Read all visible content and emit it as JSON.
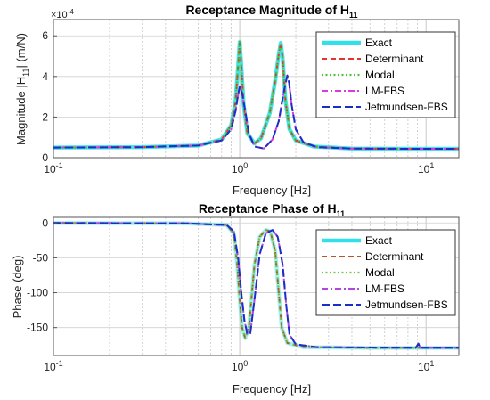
{
  "chart_data": [
    {
      "type": "line",
      "title": "Receptance Magnitude of H",
      "title_subscript": "11",
      "xlabel": "Frequency [Hz]",
      "ylabel_main": "Magnitude |H",
      "ylabel_sub": "11",
      "ylabel_tail": "| (m/N)",
      "y_multiplier": "×10",
      "y_multiplier_exp": "-4",
      "x_scale": "log",
      "xlim": [
        0.1,
        15
      ],
      "ylim": [
        0,
        6.8
      ],
      "x_tick_labels": [
        {
          "base": "10",
          "exp": "-1",
          "value": 0.1
        },
        {
          "base": "10",
          "exp": "0",
          "value": 1
        },
        {
          "base": "10",
          "exp": "1",
          "value": 10
        }
      ],
      "y_ticks": [
        {
          "label": "0",
          "value": 0
        },
        {
          "label": "2",
          "value": 2
        },
        {
          "label": "4",
          "value": 4
        },
        {
          "label": "6",
          "value": 6
        }
      ],
      "grid": true,
      "legend_position": "top-right",
      "series": [
        {
          "name": "Exact",
          "color": "#33e0ea",
          "dash": "",
          "width": 4.5,
          "points": [
            [
              0.1,
              0.5
            ],
            [
              0.3,
              0.52
            ],
            [
              0.6,
              0.6
            ],
            [
              0.8,
              0.9
            ],
            [
              0.9,
              1.6
            ],
            [
              0.95,
              2.8
            ],
            [
              0.98,
              4.5
            ],
            [
              1.0,
              5.7
            ],
            [
              1.02,
              4.5
            ],
            [
              1.05,
              2.6
            ],
            [
              1.1,
              1.2
            ],
            [
              1.2,
              0.7
            ],
            [
              1.3,
              0.95
            ],
            [
              1.45,
              2.2
            ],
            [
              1.55,
              3.8
            ],
            [
              1.62,
              5.1
            ],
            [
              1.66,
              5.65
            ],
            [
              1.7,
              4.9
            ],
            [
              1.76,
              2.8
            ],
            [
              1.85,
              1.4
            ],
            [
              2.0,
              0.85
            ],
            [
              2.5,
              0.55
            ],
            [
              4,
              0.45
            ],
            [
              8,
              0.44
            ],
            [
              15,
              0.44
            ]
          ]
        },
        {
          "name": "Determinant",
          "color": "#e8332c",
          "dash": "6,4",
          "width": 2,
          "points": [
            [
              0.1,
              0.5
            ],
            [
              0.3,
              0.52
            ],
            [
              0.6,
              0.6
            ],
            [
              0.8,
              0.9
            ],
            [
              0.9,
              1.6
            ],
            [
              0.95,
              2.8
            ],
            [
              0.98,
              4.5
            ],
            [
              1.0,
              5.7
            ],
            [
              1.02,
              4.5
            ],
            [
              1.05,
              2.6
            ],
            [
              1.1,
              1.2
            ],
            [
              1.2,
              0.7
            ],
            [
              1.3,
              0.95
            ],
            [
              1.45,
              2.2
            ],
            [
              1.55,
              3.8
            ],
            [
              1.62,
              5.1
            ],
            [
              1.66,
              5.65
            ],
            [
              1.7,
              4.9
            ],
            [
              1.76,
              2.8
            ],
            [
              1.85,
              1.4
            ],
            [
              2.0,
              0.85
            ],
            [
              2.5,
              0.55
            ],
            [
              4,
              0.45
            ],
            [
              8,
              0.44
            ],
            [
              15,
              0.44
            ]
          ]
        },
        {
          "name": "Modal",
          "color": "#44c632",
          "dash": "2,2.5",
          "width": 2.2,
          "points": [
            [
              0.1,
              0.5
            ],
            [
              0.3,
              0.52
            ],
            [
              0.6,
              0.6
            ],
            [
              0.8,
              0.9
            ],
            [
              0.9,
              1.6
            ],
            [
              0.95,
              2.8
            ],
            [
              0.98,
              4.5
            ],
            [
              1.0,
              5.7
            ],
            [
              1.02,
              4.5
            ],
            [
              1.05,
              2.6
            ],
            [
              1.1,
              1.2
            ],
            [
              1.2,
              0.7
            ],
            [
              1.3,
              0.95
            ],
            [
              1.45,
              2.2
            ],
            [
              1.55,
              3.8
            ],
            [
              1.62,
              5.1
            ],
            [
              1.66,
              5.65
            ],
            [
              1.7,
              4.9
            ],
            [
              1.76,
              2.8
            ],
            [
              1.85,
              1.4
            ],
            [
              2.0,
              0.85
            ],
            [
              2.5,
              0.55
            ],
            [
              4,
              0.45
            ],
            [
              8,
              0.44
            ],
            [
              15,
              0.44
            ]
          ]
        },
        {
          "name": "LM-FBS",
          "color": "#d83adc",
          "dash": "7,3,2,3",
          "width": 2,
          "points": [
            [
              0.1,
              0.5
            ],
            [
              0.3,
              0.52
            ],
            [
              0.6,
              0.6
            ],
            [
              0.8,
              0.85
            ],
            [
              0.9,
              1.4
            ],
            [
              0.95,
              2.3
            ],
            [
              0.98,
              3.1
            ],
            [
              1.0,
              3.5
            ],
            [
              1.03,
              3.2
            ],
            [
              1.07,
              2.3
            ],
            [
              1.12,
              1.2
            ],
            [
              1.2,
              0.55
            ],
            [
              1.35,
              0.45
            ],
            [
              1.5,
              0.9
            ],
            [
              1.62,
              1.8
            ],
            [
              1.72,
              3.2
            ],
            [
              1.8,
              4.05
            ],
            [
              1.84,
              3.7
            ],
            [
              1.9,
              2.6
            ],
            [
              2.0,
              1.4
            ],
            [
              2.2,
              0.75
            ],
            [
              2.6,
              0.52
            ],
            [
              4,
              0.45
            ],
            [
              8,
              0.44
            ],
            [
              15,
              0.44
            ]
          ]
        },
        {
          "name": "Jetmundsen-FBS",
          "color": "#1a2ec8",
          "dash": "9,4",
          "width": 2,
          "points": [
            [
              0.1,
              0.5
            ],
            [
              0.3,
              0.52
            ],
            [
              0.6,
              0.6
            ],
            [
              0.8,
              0.85
            ],
            [
              0.9,
              1.4
            ],
            [
              0.95,
              2.3
            ],
            [
              0.98,
              3.1
            ],
            [
              1.0,
              3.5
            ],
            [
              1.03,
              3.2
            ],
            [
              1.07,
              2.3
            ],
            [
              1.12,
              1.2
            ],
            [
              1.2,
              0.55
            ],
            [
              1.35,
              0.45
            ],
            [
              1.5,
              0.9
            ],
            [
              1.62,
              1.8
            ],
            [
              1.72,
              3.2
            ],
            [
              1.8,
              4.05
            ],
            [
              1.84,
              3.7
            ],
            [
              1.9,
              2.6
            ],
            [
              2.0,
              1.4
            ],
            [
              2.2,
              0.75
            ],
            [
              2.6,
              0.52
            ],
            [
              4,
              0.45
            ],
            [
              8,
              0.44
            ],
            [
              15,
              0.44
            ]
          ]
        }
      ]
    },
    {
      "type": "line",
      "title": "Receptance Phase of H",
      "title_subscript": "11",
      "xlabel": "Frequency [Hz]",
      "ylabel_main": "Phase (deg)",
      "x_scale": "log",
      "xlim": [
        0.1,
        15
      ],
      "ylim": [
        -190,
        8
      ],
      "x_tick_labels": [
        {
          "base": "10",
          "exp": "-1",
          "value": 0.1
        },
        {
          "base": "10",
          "exp": "0",
          "value": 1
        },
        {
          "base": "10",
          "exp": "1",
          "value": 10
        }
      ],
      "y_ticks": [
        {
          "label": "0",
          "value": 0
        },
        {
          "label": "-50",
          "value": -50
        },
        {
          "label": "-100",
          "value": -100
        },
        {
          "label": "-150",
          "value": -150
        }
      ],
      "grid": true,
      "legend_position": "top-right",
      "series": [
        {
          "name": "Exact",
          "color": "#33e0ea",
          "dash": "",
          "width": 4.5,
          "points": [
            [
              0.1,
              0
            ],
            [
              0.5,
              -0.5
            ],
            [
              0.85,
              -3
            ],
            [
              0.93,
              -15
            ],
            [
              0.97,
              -60
            ],
            [
              1.0,
              -110
            ],
            [
              1.03,
              -150
            ],
            [
              1.07,
              -165
            ],
            [
              1.12,
              -150
            ],
            [
              1.2,
              -60
            ],
            [
              1.28,
              -20
            ],
            [
              1.38,
              -10
            ],
            [
              1.46,
              -12
            ],
            [
              1.55,
              -40
            ],
            [
              1.62,
              -100
            ],
            [
              1.68,
              -150
            ],
            [
              1.8,
              -172
            ],
            [
              2.2,
              -178
            ],
            [
              5,
              -179
            ],
            [
              15,
              -179
            ]
          ]
        },
        {
          "name": "Determinant",
          "color": "#b2542c",
          "dash": "6,4",
          "width": 2,
          "points": [
            [
              0.1,
              0
            ],
            [
              0.5,
              -0.5
            ],
            [
              0.85,
              -3
            ],
            [
              0.93,
              -15
            ],
            [
              0.97,
              -60
            ],
            [
              1.0,
              -110
            ],
            [
              1.03,
              -150
            ],
            [
              1.07,
              -165
            ],
            [
              1.12,
              -150
            ],
            [
              1.2,
              -60
            ],
            [
              1.28,
              -20
            ],
            [
              1.38,
              -10
            ],
            [
              1.46,
              -12
            ],
            [
              1.55,
              -40
            ],
            [
              1.62,
              -100
            ],
            [
              1.68,
              -150
            ],
            [
              1.8,
              -172
            ],
            [
              2.2,
              -178
            ],
            [
              5,
              -179
            ],
            [
              15,
              -179
            ]
          ]
        },
        {
          "name": "Modal",
          "color": "#74c23a",
          "dash": "2,2.5",
          "width": 2.2,
          "points": [
            [
              0.1,
              0
            ],
            [
              0.5,
              -0.5
            ],
            [
              0.85,
              -3
            ],
            [
              0.93,
              -15
            ],
            [
              0.97,
              -60
            ],
            [
              1.0,
              -110
            ],
            [
              1.03,
              -150
            ],
            [
              1.07,
              -165
            ],
            [
              1.12,
              -150
            ],
            [
              1.2,
              -60
            ],
            [
              1.28,
              -20
            ],
            [
              1.38,
              -10
            ],
            [
              1.46,
              -12
            ],
            [
              1.55,
              -40
            ],
            [
              1.62,
              -100
            ],
            [
              1.68,
              -150
            ],
            [
              1.8,
              -172
            ],
            [
              2.2,
              -178
            ],
            [
              5,
              -179
            ],
            [
              15,
              -179
            ]
          ]
        },
        {
          "name": "LM-FBS",
          "color": "#b048de",
          "dash": "7,3,2,3",
          "width": 2,
          "points": [
            [
              0.1,
              0
            ],
            [
              0.5,
              -0.5
            ],
            [
              0.85,
              -3
            ],
            [
              0.93,
              -12
            ],
            [
              0.98,
              -50
            ],
            [
              1.02,
              -100
            ],
            [
              1.06,
              -140
            ],
            [
              1.1,
              -160
            ],
            [
              1.14,
              -158
            ],
            [
              1.2,
              -110
            ],
            [
              1.28,
              -45
            ],
            [
              1.38,
              -15
            ],
            [
              1.5,
              -10
            ],
            [
              1.6,
              -20
            ],
            [
              1.7,
              -60
            ],
            [
              1.78,
              -120
            ],
            [
              1.85,
              -160
            ],
            [
              2.0,
              -174
            ],
            [
              2.6,
              -178
            ],
            [
              8.8,
              -179
            ],
            [
              9.1,
              -173
            ],
            [
              9.3,
              -179
            ],
            [
              15,
              -179
            ]
          ]
        },
        {
          "name": "Jetmundsen-FBS",
          "color": "#1a2ec8",
          "dash": "9,4",
          "width": 2,
          "points": [
            [
              0.1,
              0
            ],
            [
              0.5,
              -0.5
            ],
            [
              0.85,
              -3
            ],
            [
              0.93,
              -12
            ],
            [
              0.98,
              -50
            ],
            [
              1.02,
              -100
            ],
            [
              1.06,
              -140
            ],
            [
              1.1,
              -160
            ],
            [
              1.14,
              -158
            ],
            [
              1.2,
              -110
            ],
            [
              1.28,
              -45
            ],
            [
              1.38,
              -15
            ],
            [
              1.5,
              -10
            ],
            [
              1.6,
              -20
            ],
            [
              1.7,
              -60
            ],
            [
              1.78,
              -120
            ],
            [
              1.85,
              -160
            ],
            [
              2.0,
              -174
            ],
            [
              2.6,
              -178
            ],
            [
              8.8,
              -179
            ],
            [
              9.1,
              -173
            ],
            [
              9.3,
              -179
            ],
            [
              15,
              -179
            ]
          ]
        }
      ]
    }
  ]
}
